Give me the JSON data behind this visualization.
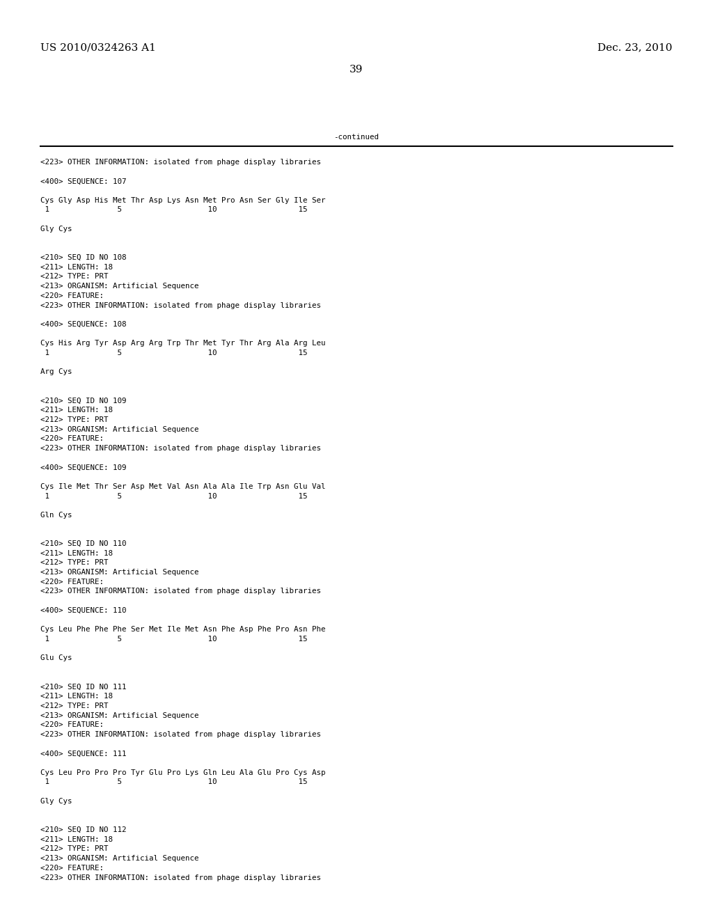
{
  "bg_color": "#ffffff",
  "header_left": "US 2010/0324263 A1",
  "header_right": "Dec. 23, 2010",
  "page_number": "39",
  "continued_text": "-continued",
  "font_size_header": 11,
  "font_size_mono": 7.8,
  "content_lines": [
    "<223> OTHER INFORMATION: isolated from phage display libraries",
    "",
    "<400> SEQUENCE: 107",
    "",
    "Cys Gly Asp His Met Thr Asp Lys Asn Met Pro Asn Ser Gly Ile Ser",
    " 1               5                   10                  15",
    "",
    "Gly Cys",
    "",
    "",
    "<210> SEQ ID NO 108",
    "<211> LENGTH: 18",
    "<212> TYPE: PRT",
    "<213> ORGANISM: Artificial Sequence",
    "<220> FEATURE:",
    "<223> OTHER INFORMATION: isolated from phage display libraries",
    "",
    "<400> SEQUENCE: 108",
    "",
    "Cys His Arg Tyr Asp Arg Arg Trp Thr Met Tyr Thr Arg Ala Arg Leu",
    " 1               5                   10                  15",
    "",
    "Arg Cys",
    "",
    "",
    "<210> SEQ ID NO 109",
    "<211> LENGTH: 18",
    "<212> TYPE: PRT",
    "<213> ORGANISM: Artificial Sequence",
    "<220> FEATURE:",
    "<223> OTHER INFORMATION: isolated from phage display libraries",
    "",
    "<400> SEQUENCE: 109",
    "",
    "Cys Ile Met Thr Ser Asp Met Val Asn Ala Ala Ile Trp Asn Glu Val",
    " 1               5                   10                  15",
    "",
    "Gln Cys",
    "",
    "",
    "<210> SEQ ID NO 110",
    "<211> LENGTH: 18",
    "<212> TYPE: PRT",
    "<213> ORGANISM: Artificial Sequence",
    "<220> FEATURE:",
    "<223> OTHER INFORMATION: isolated from phage display libraries",
    "",
    "<400> SEQUENCE: 110",
    "",
    "Cys Leu Phe Phe Phe Ser Met Ile Met Asn Phe Asp Phe Pro Asn Phe",
    " 1               5                   10                  15",
    "",
    "Glu Cys",
    "",
    "",
    "<210> SEQ ID NO 111",
    "<211> LENGTH: 18",
    "<212> TYPE: PRT",
    "<213> ORGANISM: Artificial Sequence",
    "<220> FEATURE:",
    "<223> OTHER INFORMATION: isolated from phage display libraries",
    "",
    "<400> SEQUENCE: 111",
    "",
    "Cys Leu Pro Pro Pro Tyr Glu Pro Lys Gln Leu Ala Glu Pro Cys Asp",
    " 1               5                   10                  15",
    "",
    "Gly Cys",
    "",
    "",
    "<210> SEQ ID NO 112",
    "<211> LENGTH: 18",
    "<212> TYPE: PRT",
    "<213> ORGANISM: Artificial Sequence",
    "<220> FEATURE:",
    "<223> OTHER INFORMATION: isolated from phage display libraries"
  ]
}
